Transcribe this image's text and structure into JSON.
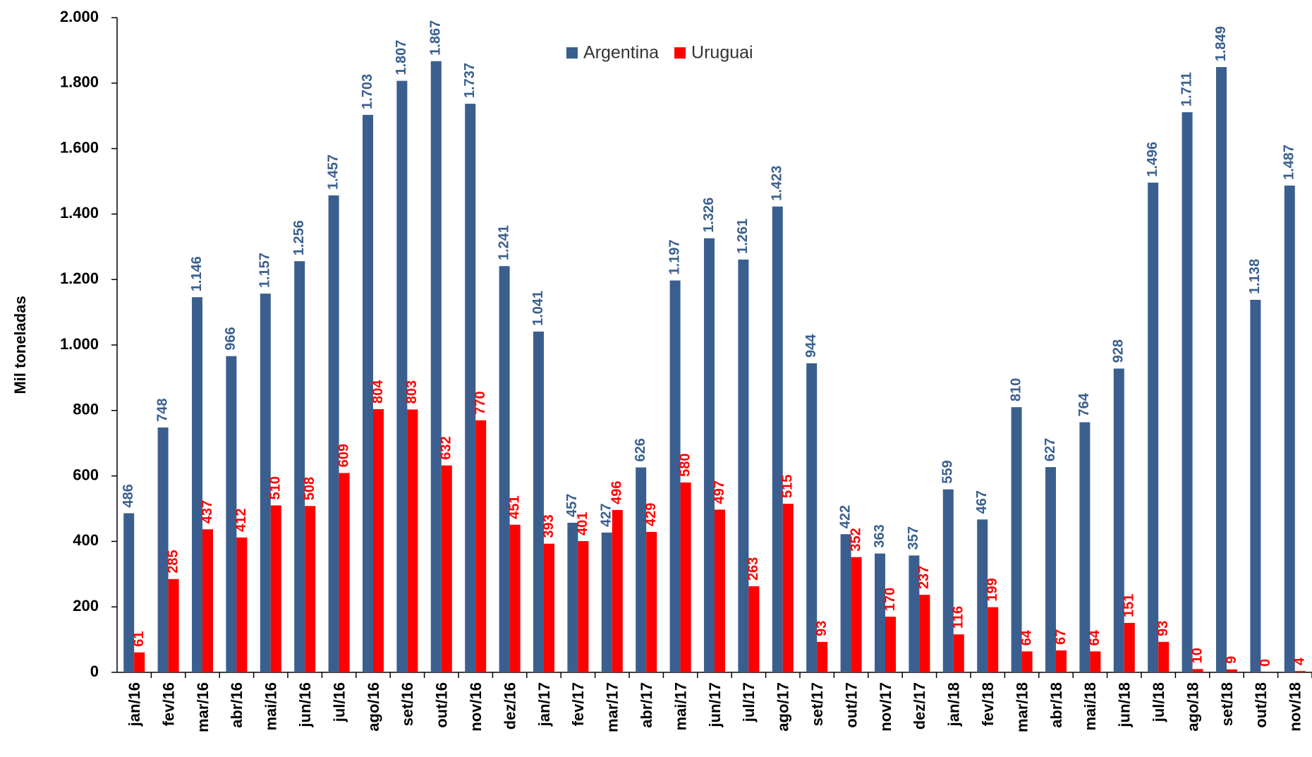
{
  "chart_data": {
    "type": "bar",
    "y_label": "Mil toneladas",
    "categories": [
      "jan/16",
      "fev/16",
      "mar/16",
      "abr/16",
      "mai/16",
      "jun/16",
      "jul/16",
      "ago/16",
      "set/16",
      "out/16",
      "nov/16",
      "dez/16",
      "jan/17",
      "fev/17",
      "mar/17",
      "abr/17",
      "mai/17",
      "jun/17",
      "jul/17",
      "ago/17",
      "set/17",
      "out/17",
      "nov/17",
      "dez/17",
      "jan/18",
      "fev/18",
      "mar/18",
      "abr/18",
      "mai/18",
      "jun/18",
      "jul/18",
      "ago/18",
      "set/18",
      "out/18",
      "nov/18"
    ],
    "series": [
      {
        "name": "Argentina",
        "color": "#3a5f8f",
        "values": [
          486,
          748,
          1146,
          966,
          1157,
          1256,
          1457,
          1703,
          1807,
          1867,
          1737,
          1241,
          1041,
          457,
          427,
          626,
          1197,
          1326,
          1261,
          1423,
          944,
          422,
          363,
          357,
          559,
          467,
          810,
          627,
          764,
          928,
          1496,
          1711,
          1849,
          1138,
          1487
        ],
        "value_labels": [
          "486",
          "748",
          "1.146",
          "966",
          "1.157",
          "1.256",
          "1.457",
          "1.703",
          "1.807",
          "1.867",
          "1.737",
          "1.241",
          "1.041",
          "457",
          "427",
          "626",
          "1.197",
          "1.326",
          "1.261",
          "1.423",
          "944",
          "422",
          "363",
          "357",
          "559",
          "467",
          "810",
          "627",
          "764",
          "928",
          "1.496",
          "1.711",
          "1.849",
          "1.138",
          "1.487"
        ]
      },
      {
        "name": "Uruguai",
        "color": "#ff0000",
        "values": [
          61,
          285,
          437,
          412,
          510,
          508,
          609,
          804,
          803,
          632,
          770,
          451,
          393,
          401,
          496,
          429,
          580,
          497,
          263,
          515,
          93,
          352,
          170,
          237,
          116,
          199,
          64,
          67,
          64,
          151,
          93,
          10,
          9,
          0,
          4
        ]
      }
    ],
    "ylim": [
      0,
      2000
    ],
    "yticks": [
      0,
      200,
      400,
      600,
      800,
      {
        "value": 1000,
        "label": "1.000"
      },
      {
        "value": 1200,
        "label": "1.200"
      },
      {
        "value": 1400,
        "label": "1.400"
      },
      {
        "value": 1600,
        "label": "1.600"
      },
      {
        "value": 1800,
        "label": "1.800"
      },
      {
        "value": 2000,
        "label": "2.000"
      }
    ],
    "legend": "top"
  }
}
